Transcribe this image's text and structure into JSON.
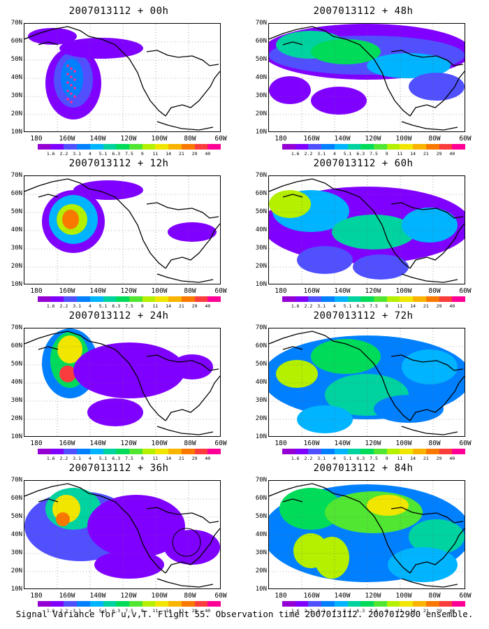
{
  "panels": [
    {
      "title": "2007013112 + 00h"
    },
    {
      "title": "2007013112 + 48h"
    },
    {
      "title": "2007013112 + 12h"
    },
    {
      "title": "2007013112 + 60h"
    },
    {
      "title": "2007013112 + 24h"
    },
    {
      "title": "2007013112 + 72h"
    },
    {
      "title": "2007013112 + 36h"
    },
    {
      "title": "2007013112 + 84h"
    }
  ],
  "lat_labels": [
    "70N",
    "60N",
    "50N",
    "40N",
    "30N",
    "20N",
    "10N"
  ],
  "lon_labels": [
    "180",
    "160W",
    "140W",
    "120W",
    "100W",
    "80W",
    "60W"
  ],
  "colorbar": {
    "labels": [
      "1.6",
      "2.2",
      "3.1",
      "4",
      "5.1",
      "6.3",
      "7.5",
      "9",
      "11",
      "14",
      "21",
      "29",
      "40"
    ],
    "colors": [
      "#9400d3",
      "#8000ff",
      "#5050ff",
      "#0080ff",
      "#00b4ff",
      "#00d2a0",
      "#00dc5a",
      "#50e632",
      "#b4f000",
      "#f0e600",
      "#fab400",
      "#fa7800",
      "#fa3c3c",
      "#ff0096"
    ]
  },
  "caption": "Signal Variance for u,v,T. Flight 55. Observation time 2007013112. 2007012900 ensemble.",
  "marker_color": "#ff2a8a"
}
